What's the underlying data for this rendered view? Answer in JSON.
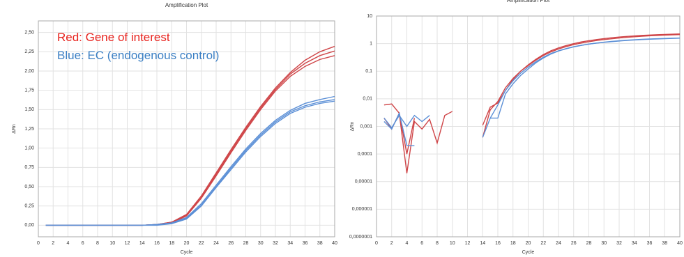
{
  "chart_data": [
    {
      "type": "line",
      "title": "Amplification Plot",
      "xlabel": "Cycle",
      "ylabel": "ΔRn",
      "annotations": [
        {
          "text": "Red: Gene of interest",
          "color": "#e8231e"
        },
        {
          "text": "Blue: EC (endogenous control)",
          "color": "#3b7fc4"
        }
      ],
      "x": [
        1,
        2,
        4,
        6,
        8,
        10,
        12,
        14,
        16,
        18,
        20,
        22,
        24,
        26,
        28,
        30,
        32,
        34,
        36,
        38,
        40
      ],
      "series": [
        {
          "color": "#cf4548",
          "values": [
            0,
            0,
            0,
            0,
            0,
            0,
            0,
            0,
            0.01,
            0.04,
            0.14,
            0.38,
            0.68,
            0.98,
            1.27,
            1.54,
            1.78,
            1.98,
            2.14,
            2.25,
            2.32
          ]
        },
        {
          "color": "#cf4548",
          "values": [
            0,
            0,
            0,
            0,
            0,
            0,
            0,
            0,
            0.01,
            0.04,
            0.13,
            0.36,
            0.66,
            0.96,
            1.25,
            1.52,
            1.76,
            1.96,
            2.1,
            2.2,
            2.26
          ]
        },
        {
          "color": "#cf4548",
          "values": [
            0,
            0,
            0,
            0,
            0,
            0,
            0,
            0,
            0.01,
            0.03,
            0.12,
            0.35,
            0.64,
            0.94,
            1.23,
            1.5,
            1.74,
            1.93,
            2.06,
            2.15,
            2.2
          ]
        },
        {
          "color": "#5b8fd6",
          "values": [
            0,
            0,
            0,
            0,
            0,
            0,
            0,
            0,
            0.01,
            0.03,
            0.1,
            0.28,
            0.52,
            0.76,
            0.99,
            1.19,
            1.36,
            1.49,
            1.58,
            1.63,
            1.67
          ]
        },
        {
          "color": "#5b8fd6",
          "values": [
            0,
            0,
            0,
            0,
            0,
            0,
            0,
            0,
            0.01,
            0.03,
            0.09,
            0.26,
            0.5,
            0.74,
            0.97,
            1.17,
            1.34,
            1.47,
            1.55,
            1.6,
            1.63
          ]
        },
        {
          "color": "#5b8fd6",
          "values": [
            0,
            0,
            0,
            0,
            0,
            0,
            0,
            0,
            0,
            0.02,
            0.08,
            0.25,
            0.49,
            0.72,
            0.95,
            1.15,
            1.32,
            1.45,
            1.53,
            1.58,
            1.61
          ]
        }
      ],
      "xlim": [
        0,
        40
      ],
      "xticks": [
        0,
        2,
        4,
        6,
        8,
        10,
        12,
        14,
        16,
        18,
        20,
        22,
        24,
        26,
        28,
        30,
        32,
        34,
        36,
        38,
        40
      ],
      "ylim": [
        -0.15,
        2.65
      ],
      "yticks": [
        {
          "value": 0,
          "label": "0,00"
        },
        {
          "value": 0.25,
          "label": "0,25"
        },
        {
          "value": 0.5,
          "label": "0,50"
        },
        {
          "value": 0.75,
          "label": "0,75"
        },
        {
          "value": 1,
          "label": "1,00"
        },
        {
          "value": 1.25,
          "label": "1,25"
        },
        {
          "value": 1.5,
          "label": "1,50"
        },
        {
          "value": 1.75,
          "label": "1,75"
        },
        {
          "value": 2,
          "label": "2,00"
        },
        {
          "value": 2.25,
          "label": "2,25"
        },
        {
          "value": 2.5,
          "label": "2,50"
        }
      ],
      "grid": true,
      "yscale": "linear"
    },
    {
      "type": "line",
      "title": "Amplification Plot",
      "xlabel": "Cycle",
      "ylabel": "ΔRn",
      "x": [
        1,
        2,
        3,
        4,
        5,
        6,
        7,
        8,
        9,
        10,
        11,
        12,
        13,
        14,
        15,
        16,
        17,
        18,
        19,
        20,
        21,
        22,
        23,
        24,
        25,
        26,
        27,
        28,
        29,
        30,
        31,
        32,
        33,
        34,
        35,
        36,
        37,
        38,
        39,
        40
      ],
      "series": [
        {
          "color": "#cf4548",
          "values": [
            0.006,
            0.0065,
            0.003,
            2e-05,
            0.0015,
            0.0008,
            0.0018,
            0.00025,
            0.0025,
            0.0035,
            null,
            null,
            null,
            0.0011,
            0.005,
            0.007,
            0.02,
            0.05,
            0.1,
            0.17,
            0.27,
            0.4,
            0.55,
            0.7,
            0.85,
            1.0,
            1.15,
            1.28,
            1.4,
            1.52,
            1.63,
            1.73,
            1.82,
            1.9,
            1.98,
            2.05,
            2.1,
            2.15,
            2.2,
            2.25
          ]
        },
        {
          "color": "#cf4548",
          "values": [
            0.002,
            0.0008,
            0.003,
            0.0001,
            0.002,
            null,
            null,
            null,
            null,
            null,
            null,
            null,
            null,
            0.0004,
            0.004,
            0.008,
            0.025,
            0.055,
            0.1,
            0.16,
            0.25,
            0.37,
            0.5,
            0.64,
            0.78,
            0.92,
            1.05,
            1.17,
            1.29,
            1.4,
            1.5,
            1.6,
            1.69,
            1.77,
            1.85,
            1.92,
            1.98,
            2.03,
            2.08,
            2.12
          ]
        },
        {
          "color": "#5b8fd6",
          "values": [
            0.002,
            0.0009,
            0.0025,
            0.001,
            0.0025,
            0.0015,
            0.0025,
            null,
            null,
            null,
            null,
            null,
            null,
            null,
            0.002,
            0.002,
            0.015,
            0.035,
            0.07,
            0.12,
            0.2,
            0.3,
            0.42,
            0.54,
            0.65,
            0.76,
            0.86,
            0.96,
            1.05,
            1.13,
            1.2,
            1.27,
            1.33,
            1.38,
            1.43,
            1.47,
            1.51,
            1.54,
            1.57,
            1.6
          ]
        },
        {
          "color": "#5b8fd6",
          "values": [
            0.0015,
            0.0008,
            0.003,
            0.0002,
            0.0002,
            null,
            null,
            null,
            null,
            null,
            null,
            null,
            null,
            0.0004,
            0.002,
            0.006,
            0.02,
            0.045,
            0.085,
            0.14,
            0.22,
            0.32,
            0.44,
            0.55,
            0.66,
            0.77,
            0.87,
            0.96,
            1.04,
            1.11,
            1.18,
            1.24,
            1.3,
            1.35,
            1.4,
            1.44,
            1.48,
            1.51,
            1.54,
            1.57
          ]
        }
      ],
      "xlim": [
        0,
        40
      ],
      "xticks": [
        0,
        2,
        4,
        6,
        8,
        10,
        12,
        14,
        16,
        18,
        20,
        22,
        24,
        26,
        28,
        30,
        32,
        34,
        36,
        38,
        40
      ],
      "ylim": [
        1e-07,
        10
      ],
      "yticks": [
        {
          "value": 1e-07,
          "label": "0,0000001"
        },
        {
          "value": 1e-06,
          "label": "0,000001"
        },
        {
          "value": 1e-05,
          "label": "0,00001"
        },
        {
          "value": 0.0001,
          "label": "0,0001"
        },
        {
          "value": 0.001,
          "label": "0,001"
        },
        {
          "value": 0.01,
          "label": "0,01"
        },
        {
          "value": 0.1,
          "label": "0,1"
        },
        1,
        10
      ],
      "grid": true,
      "yscale": "log"
    }
  ]
}
